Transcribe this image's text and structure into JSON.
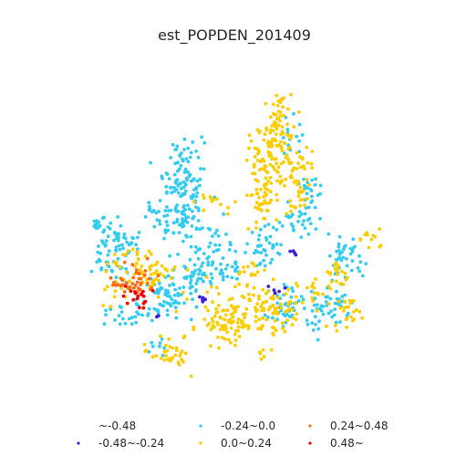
{
  "title": "est_POPDEN_201409",
  "legend": {
    "placement": "bottom",
    "entries": [
      {
        "label": "~-0.48",
        "color": "#ffffff"
      },
      {
        "label": "-0.48~-0.24",
        "color": "#3b1fd6"
      },
      {
        "label": "-0.24~0.0",
        "color": "#33ccf0"
      },
      {
        "label": "0.0~0.24",
        "color": "#ffcc00"
      },
      {
        "label": "0.24~0.48",
        "color": "#ff6a14"
      },
      {
        "label": "0.48~",
        "color": "#f20000"
      }
    ]
  },
  "colors": {
    "background": "#ffffff",
    "title_text": "#262626",
    "legend_text": "#262626"
  }
}
